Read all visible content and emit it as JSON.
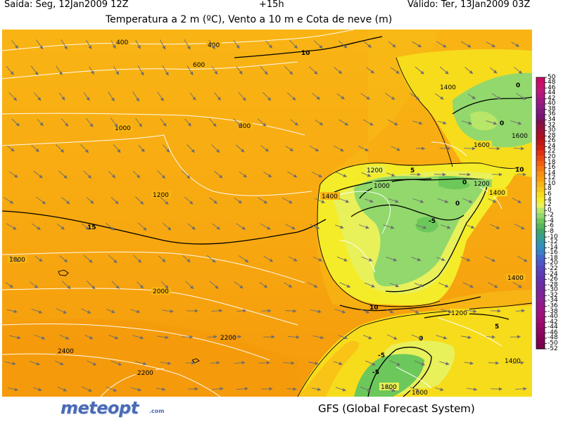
{
  "header": {
    "run": "Saída: Seg, 12Jan2009 12Z",
    "lead": "+15h",
    "valid": "Válido: Ter, 13Jan2009 03Z",
    "title": "Temperatura a 2 m (ºC), Vento a 10 m e Cota de neve (m)"
  },
  "footer": {
    "logo_text": "meteopt",
    "logo_domain": ".com",
    "model": "GFS (Global Forecast System)"
  },
  "colors": {
    "ocean_warm": "#f6a10c",
    "ocean_mid": "#f9b414",
    "land_mild": "#f7dc1c",
    "land_cool": "#e8f05a",
    "land_cold": "#92d86c",
    "land_frost": "#6cc85a",
    "isoline_snow": "#ffffff",
    "isotherm": "#000000",
    "wind_arrow": "#707070"
  },
  "colorbar": {
    "labels": [
      "50",
      "48",
      "46",
      "44",
      "42",
      "40",
      "38",
      "36",
      "34",
      "32",
      "30",
      "28",
      "26",
      "24",
      "22",
      "20",
      "18",
      "16",
      "14",
      "12",
      "10",
      "8",
      "6",
      "4",
      "2",
      "0",
      "-2",
      "-4",
      "-6",
      "-8",
      "-10",
      "-12",
      "-14",
      "-16",
      "-18",
      "-20",
      "-22",
      "-24",
      "-26",
      "-28",
      "-30",
      "-32",
      "-34",
      "-36",
      "-38",
      "-40",
      "-42",
      "-44",
      "-46",
      "-48",
      "-50",
      "-52"
    ],
    "colors": [
      "#c80a64",
      "#c8106e",
      "#c01878",
      "#b01880",
      "#a01884",
      "#901a84",
      "#801880",
      "#781478",
      "#801050",
      "#901040",
      "#a01030",
      "#b01020",
      "#c01818",
      "#d02010",
      "#e03010",
      "#e84810",
      "#f06010",
      "#f47810",
      "#f69010",
      "#f6a00c",
      "#f8b414",
      "#f8c818",
      "#f8dc1c",
      "#f4ec28",
      "#e8f05a",
      "#b8e668",
      "#92d86c",
      "#6cc85a",
      "#52b85a",
      "#3ea66a",
      "#36a08c",
      "#3098a8",
      "#3090c0",
      "#3a80c8",
      "#4468cc",
      "#4c58c8",
      "#5448c0",
      "#5c3cb8",
      "#6034b0",
      "#6a2ca8",
      "#7428a0",
      "#80249a",
      "#8a2094",
      "#94188c",
      "#9c1484",
      "#a0107c",
      "#a00c74",
      "#98086c",
      "#900664",
      "#88045c",
      "#800254",
      "#78004c"
    ]
  },
  "isolines": {
    "snow_level": [
      "400",
      "400",
      "600",
      "800",
      "1000",
      "1200",
      "1400",
      "1800",
      "2000",
      "2200",
      "2400",
      "2200",
      "1000",
      "1200",
      "1200",
      "1400",
      "1600",
      "1600",
      "1400",
      "1400",
      "1200",
      "1400",
      "1600",
      "1800"
    ],
    "isotherm": [
      "10",
      "15",
      "10",
      "5",
      "0",
      "-5",
      "0",
      "10",
      "5",
      "0",
      "-5",
      "-5",
      "0",
      "0"
    ]
  }
}
